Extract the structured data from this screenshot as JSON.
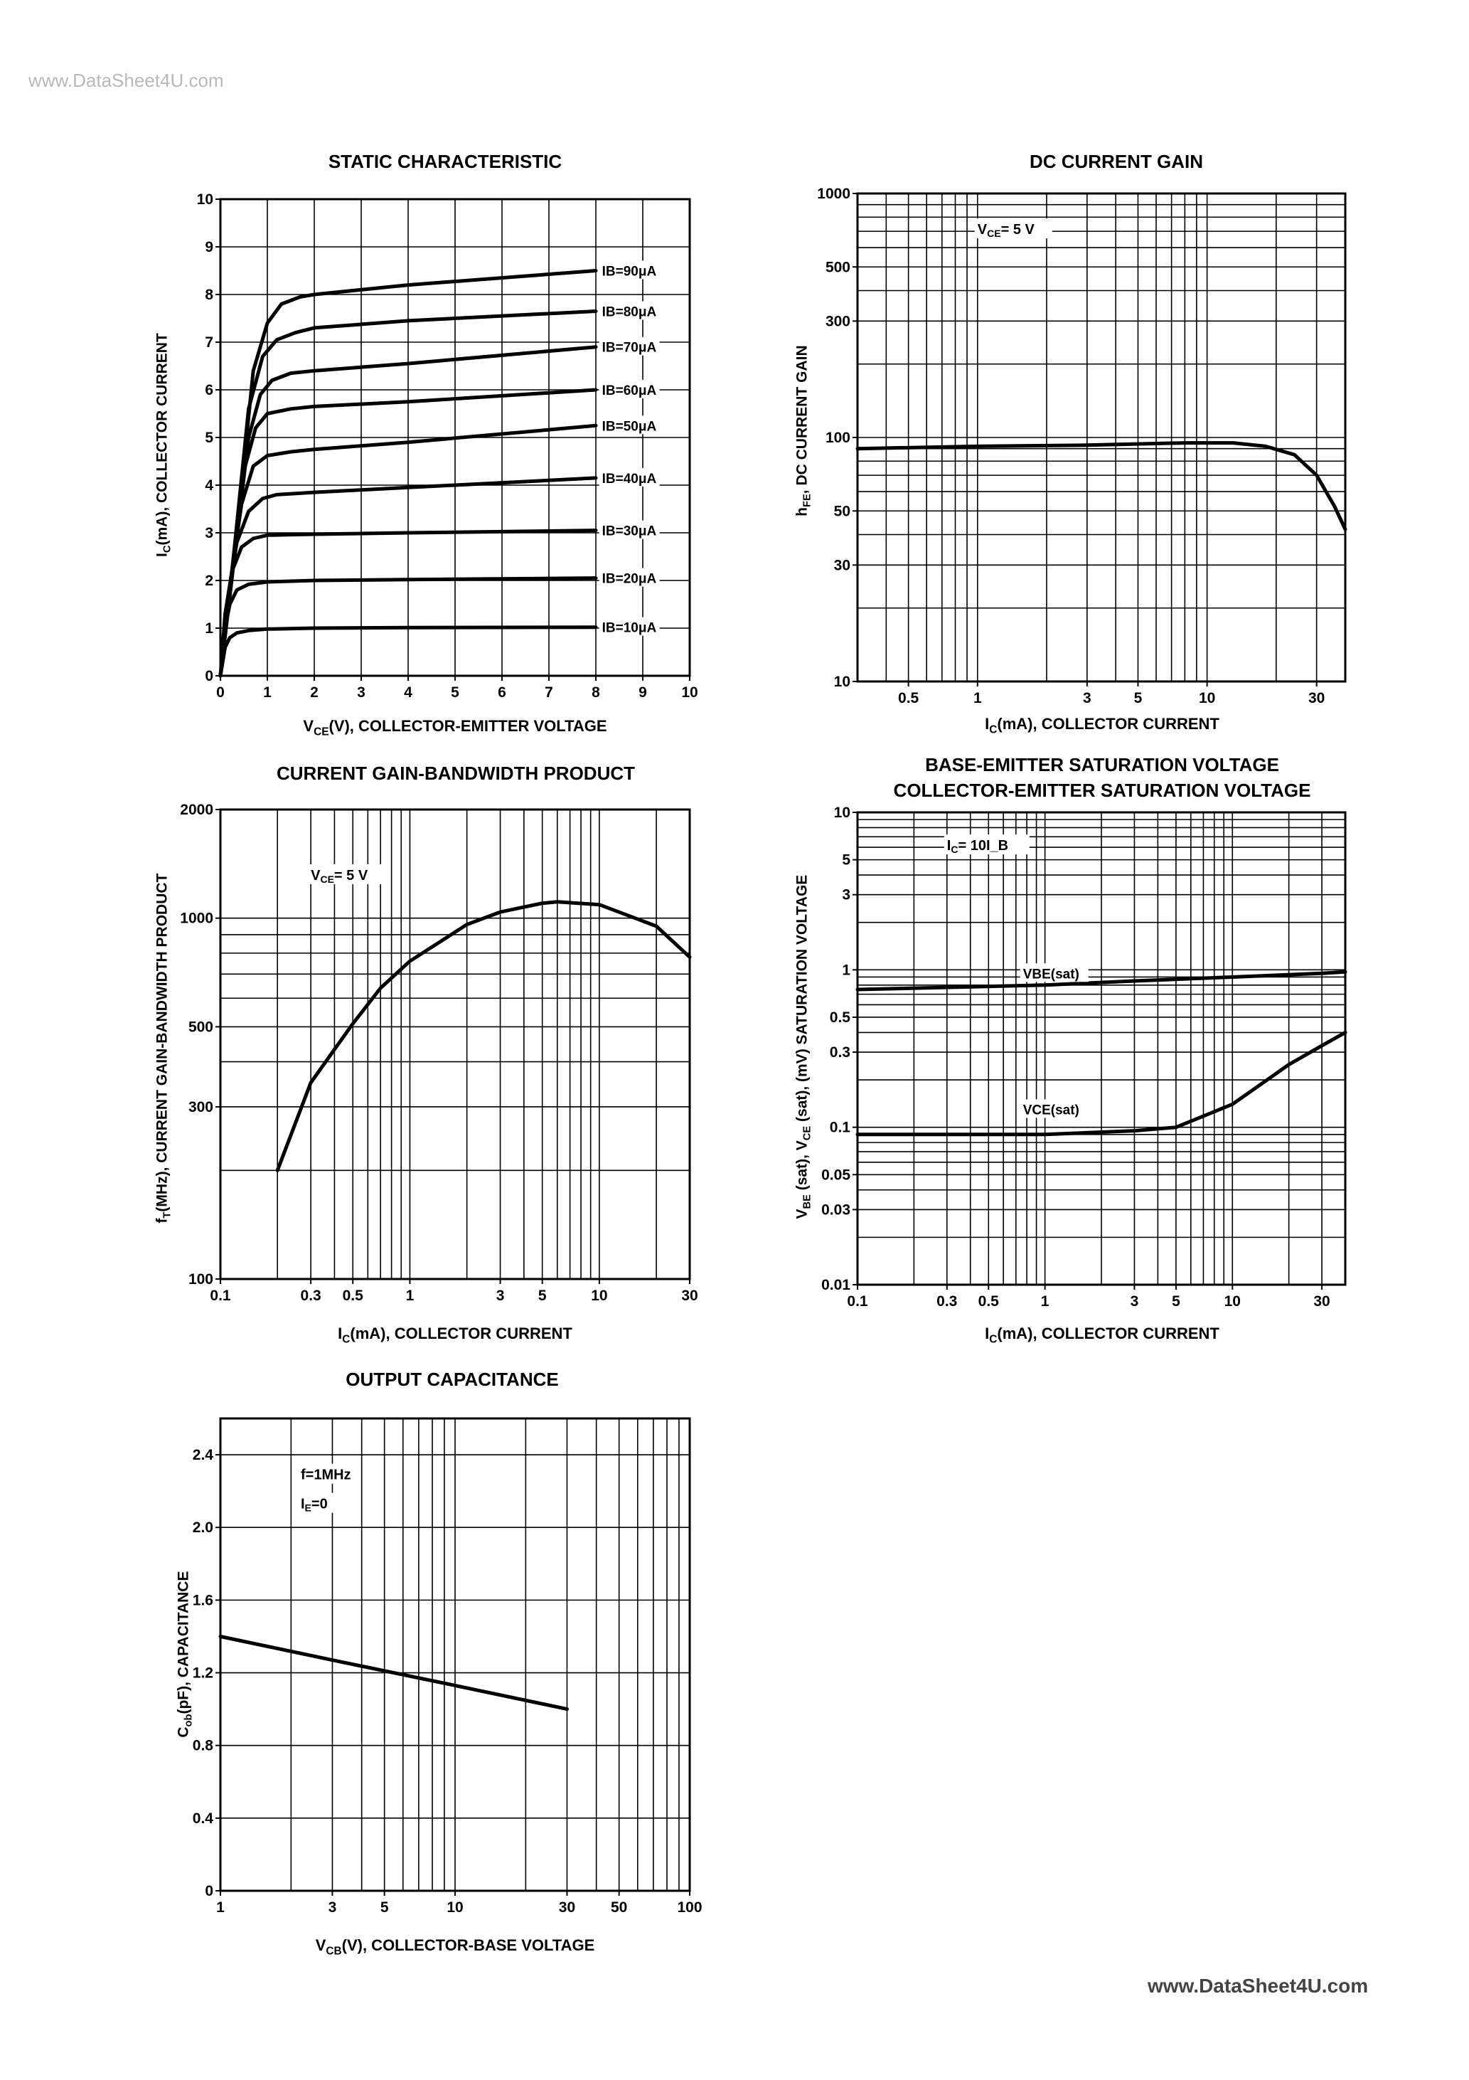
{
  "watermark": {
    "top": "www.DataSheet4U.com",
    "bottom": "www.DataSheet4U.com"
  },
  "chart_data": [
    {
      "id": "static",
      "type": "line",
      "title": "STATIC CHARACTERISTIC",
      "xlabel": "V_CE(V), COLLECTOR-EMITTER VOLTAGE",
      "ylabel": "I_C(mA), COLLECTOR CURRENT",
      "xscale": "linear",
      "yscale": "linear",
      "xlim": [
        0,
        10
      ],
      "ylim": [
        0,
        10
      ],
      "xticks": [
        0,
        1,
        2,
        3,
        4,
        5,
        6,
        7,
        8,
        9,
        10
      ],
      "xtick_labels": [
        "0",
        "1",
        "2",
        "3",
        "4",
        "5",
        "6",
        "7",
        "8",
        "9",
        "10"
      ],
      "yticks": [
        0,
        1,
        2,
        3,
        4,
        5,
        6,
        7,
        8,
        9,
        10
      ],
      "ytick_labels": [
        "0",
        "1",
        "2",
        "3",
        "4",
        "5",
        "6",
        "7",
        "8",
        "9",
        "10"
      ],
      "grid": true,
      "series": [
        {
          "name": "I_B=10µA",
          "label": "IB=10μA",
          "x": [
            0,
            0.1,
            0.2,
            0.35,
            0.6,
            1,
            2,
            4,
            8
          ],
          "y": [
            0,
            0.6,
            0.8,
            0.9,
            0.95,
            0.98,
            1.0,
            1.01,
            1.02
          ],
          "label_at": [
            8.1,
            1.02
          ]
        },
        {
          "name": "I_B=20µA",
          "label": "IB=20μA",
          "x": [
            0,
            0.1,
            0.2,
            0.35,
            0.6,
            1,
            2,
            4,
            8
          ],
          "y": [
            0,
            1.0,
            1.5,
            1.8,
            1.92,
            1.97,
            2.0,
            2.02,
            2.05
          ],
          "label_at": [
            8.1,
            2.05
          ]
        },
        {
          "name": "I_B=30µA",
          "label": "IB=30μA",
          "x": [
            0,
            0.1,
            0.25,
            0.45,
            0.7,
            1,
            2,
            4,
            8
          ],
          "y": [
            0,
            1.3,
            2.2,
            2.7,
            2.88,
            2.95,
            2.97,
            3.0,
            3.05
          ],
          "label_at": [
            8.1,
            3.05
          ]
        },
        {
          "name": "I_B=40µA",
          "label": "IB=40μA",
          "x": [
            0,
            0.15,
            0.35,
            0.6,
            0.9,
            1.2,
            2,
            4,
            8
          ],
          "y": [
            0,
            1.6,
            2.8,
            3.45,
            3.72,
            3.8,
            3.85,
            3.95,
            4.15
          ],
          "label_at": [
            8.1,
            4.15
          ]
        },
        {
          "name": "I_B=50µA",
          "label": "IB=50μA",
          "x": [
            0,
            0.2,
            0.45,
            0.7,
            1,
            1.5,
            2,
            4,
            8
          ],
          "y": [
            0,
            1.9,
            3.6,
            4.4,
            4.62,
            4.7,
            4.75,
            4.9,
            5.25
          ],
          "label_at": [
            8.1,
            5.25
          ]
        },
        {
          "name": "I_B=60µA",
          "label": "IB=60μA",
          "x": [
            0,
            0.25,
            0.5,
            0.75,
            1,
            1.5,
            2,
            4,
            8
          ],
          "y": [
            0,
            2.2,
            4.3,
            5.2,
            5.5,
            5.6,
            5.65,
            5.75,
            6.0
          ],
          "label_at": [
            8.1,
            6.0
          ]
        },
        {
          "name": "I_B=70µA",
          "label": "IB=70μA",
          "x": [
            0,
            0.3,
            0.6,
            0.85,
            1.1,
            1.5,
            2,
            4,
            8
          ],
          "y": [
            0,
            2.5,
            5.0,
            5.9,
            6.2,
            6.35,
            6.4,
            6.55,
            6.9
          ],
          "label_at": [
            8.1,
            6.9
          ]
        },
        {
          "name": "I_B=80µA",
          "label": "IB=80μA",
          "x": [
            0,
            0.3,
            0.6,
            0.9,
            1.2,
            1.6,
            2,
            4,
            8
          ],
          "y": [
            0,
            2.7,
            5.6,
            6.7,
            7.05,
            7.2,
            7.3,
            7.45,
            7.65
          ],
          "label_at": [
            8.1,
            7.65
          ]
        },
        {
          "name": "I_B=90µA",
          "label": "IB=90μA",
          "x": [
            0,
            0.35,
            0.7,
            1,
            1.3,
            1.7,
            2,
            4,
            8
          ],
          "y": [
            0,
            3.0,
            6.4,
            7.4,
            7.8,
            7.95,
            8.0,
            8.2,
            8.5
          ],
          "label_at": [
            8.1,
            8.5
          ]
        }
      ]
    },
    {
      "id": "hfe",
      "type": "line",
      "title": "DC CURRENT GAIN",
      "xlabel": "I_C(mA), COLLECTOR CURRENT",
      "ylabel": "h_FE, DC CURRENT GAIN",
      "xscale": "log",
      "yscale": "log",
      "xlim": [
        0.3,
        40
      ],
      "ylim": [
        10,
        1000
      ],
      "xticks": [
        0.5,
        1,
        3,
        5,
        10,
        30
      ],
      "xtick_labels": [
        "0.5",
        "1",
        "3",
        "5",
        "10",
        "30"
      ],
      "yticks": [
        10,
        30,
        50,
        100,
        300,
        500,
        1000
      ],
      "ytick_labels": [
        "10",
        "30",
        "50",
        "100",
        "300",
        "500",
        "1000"
      ],
      "grid": true,
      "annotations": [
        {
          "text": "V_CE= 5 V",
          "at": [
            1,
            700
          ]
        }
      ],
      "series": [
        {
          "name": "h_FE",
          "x": [
            0.3,
            1,
            3,
            8,
            13,
            18,
            24,
            30,
            36,
            40
          ],
          "y": [
            90,
            92,
            93,
            95,
            95,
            92,
            85,
            70,
            52,
            42
          ]
        }
      ]
    },
    {
      "id": "ft",
      "type": "line",
      "title": "CURRENT GAIN-BANDWIDTH PRODUCT",
      "xlabel": "I_C(mA), COLLECTOR CURRENT",
      "ylabel": "f_T(MHz), CURRENT GAIN-BANDWIDTH PRODUCT",
      "xscale": "log",
      "yscale": "log",
      "xlim": [
        0.1,
        30
      ],
      "ylim": [
        100,
        2000
      ],
      "xticks": [
        0.1,
        0.3,
        0.5,
        1,
        3,
        5,
        10,
        30
      ],
      "xtick_labels": [
        "0.1",
        "0.3",
        "0.5",
        "1",
        "3",
        "5",
        "10",
        "30"
      ],
      "yticks": [
        100,
        300,
        500,
        1000,
        2000
      ],
      "ytick_labels": [
        "100",
        "300",
        "500",
        "1000",
        "2000"
      ],
      "grid": true,
      "annotations": [
        {
          "text": "V_CE= 5 V",
          "at": [
            0.3,
            1300
          ]
        }
      ],
      "series": [
        {
          "name": "f_T",
          "x": [
            0.2,
            0.3,
            0.5,
            0.7,
            1,
            2,
            3,
            5,
            6,
            10,
            20,
            30
          ],
          "y": [
            200,
            350,
            510,
            640,
            760,
            960,
            1040,
            1100,
            1110,
            1090,
            950,
            780
          ]
        }
      ]
    },
    {
      "id": "sat",
      "type": "line",
      "title": "BASE-EMITTER SATURATION VOLTAGE",
      "title2": "COLLECTOR-EMITTER SATURATION VOLTAGE",
      "xlabel": "I_C(mA), COLLECTOR CURRENT",
      "ylabel": "V_BE (sat), V_CE (sat), (mV) SATURATION VOLTAGE",
      "xscale": "log",
      "yscale": "log",
      "xlim": [
        0.1,
        40
      ],
      "ylim": [
        0.01,
        10
      ],
      "xticks": [
        0.1,
        0.3,
        0.5,
        1,
        3,
        5,
        10,
        30
      ],
      "xtick_labels": [
        "0.1",
        "0.3",
        "0.5",
        "1",
        "3",
        "5",
        "10",
        "30"
      ],
      "yticks": [
        0.01,
        0.03,
        0.05,
        0.1,
        0.3,
        0.5,
        1,
        3,
        5,
        10
      ],
      "ytick_labels": [
        "0.01",
        "0.03",
        "0.05",
        "0.1",
        "0.3",
        "0.5",
        "1",
        "3",
        "5",
        "10"
      ],
      "grid": true,
      "annotations": [
        {
          "text": "I_C= 10I_B",
          "at": [
            0.3,
            6
          ]
        }
      ],
      "series": [
        {
          "name": "V_BE(sat)",
          "label": "VBE(sat)",
          "x": [
            0.1,
            1,
            3,
            10,
            30,
            40
          ],
          "y": [
            0.75,
            0.8,
            0.85,
            0.9,
            0.95,
            0.97
          ],
          "label_at": [
            0.75,
            0.95
          ]
        },
        {
          "name": "V_CE(sat)",
          "label": "VCE(sat)",
          "x": [
            0.1,
            1,
            3,
            5,
            10,
            20,
            30,
            40
          ],
          "y": [
            0.09,
            0.09,
            0.095,
            0.1,
            0.14,
            0.25,
            0.33,
            0.4
          ],
          "label_at": [
            0.75,
            0.13
          ]
        }
      ]
    },
    {
      "id": "cob",
      "type": "line",
      "title": "OUTPUT CAPACITANCE",
      "xlabel": "V_CB(V), COLLECTOR-BASE VOLTAGE",
      "ylabel": "C_ob(pF), CAPACITANCE",
      "xscale": "log",
      "yscale": "linear",
      "xlim": [
        1,
        100
      ],
      "ylim": [
        0,
        2.6
      ],
      "xticks": [
        1,
        3,
        5,
        10,
        30,
        50,
        100
      ],
      "xtick_labels": [
        "1",
        "3",
        "5",
        "10",
        "30",
        "50",
        "100"
      ],
      "yticks": [
        0,
        0.4,
        0.8,
        1.2,
        1.6,
        2.0,
        2.4
      ],
      "ytick_labels": [
        "0",
        "0.4",
        "0.8",
        "1.2",
        "1.6",
        "2.0",
        "2.4"
      ],
      "grid": true,
      "annotations": [
        {
          "text": "f=1MHz",
          "at": [
            2.2,
            2.28
          ]
        },
        {
          "text": "I_E=0",
          "at": [
            2.2,
            2.12
          ]
        }
      ],
      "series": [
        {
          "name": "C_ob",
          "x": [
            1,
            3,
            10,
            30
          ],
          "y": [
            1.4,
            1.27,
            1.13,
            1.0
          ]
        }
      ]
    }
  ]
}
